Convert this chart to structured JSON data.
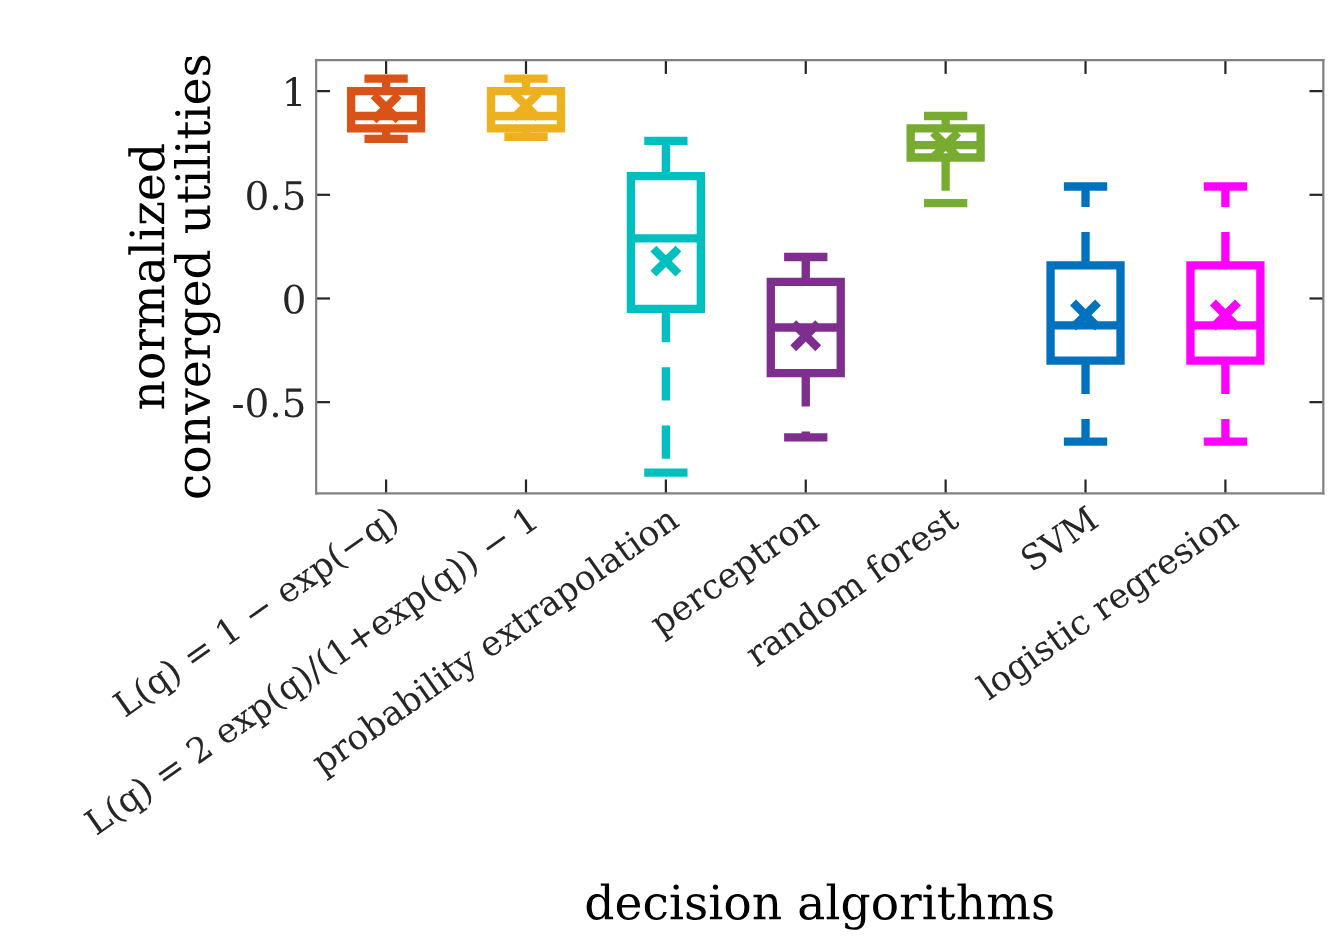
{
  "chart_data": {
    "type": "box",
    "xlabel": "decision algorithms",
    "ylabel": "normalized\nconverged utilities",
    "categories": [
      "L(q) = 1 − exp(−q)",
      "L(q) = 2 exp(q)/(1+exp(q)) − 1",
      "probability extrapolation",
      "perceptron",
      "random forest",
      "SVM",
      "logistic regresion"
    ],
    "colors": [
      "#d95319",
      "#edb120",
      "#00bfbf",
      "#7e2f8e",
      "#77ac30",
      "#0072bd",
      "#ff00ff"
    ],
    "boxes": [
      {
        "low": 0.77,
        "q1": 0.82,
        "median": 0.88,
        "q3": 1.0,
        "high": 1.06,
        "mean": 0.92
      },
      {
        "low": 0.78,
        "q1": 0.82,
        "median": 0.88,
        "q3": 1.0,
        "high": 1.06,
        "mean": 0.93
      },
      {
        "low": -0.84,
        "q1": -0.05,
        "median": 0.29,
        "q3": 0.59,
        "high": 0.76,
        "mean": 0.18
      },
      {
        "low": -0.67,
        "q1": -0.36,
        "median": -0.14,
        "q3": 0.08,
        "high": 0.2,
        "mean": -0.18
      },
      {
        "low": 0.46,
        "q1": 0.68,
        "median": 0.74,
        "q3": 0.82,
        "high": 0.88,
        "mean": 0.74
      },
      {
        "low": -0.69,
        "q1": -0.3,
        "median": -0.13,
        "q3": 0.16,
        "high": 0.54,
        "mean": -0.08
      },
      {
        "low": -0.69,
        "q1": -0.3,
        "median": -0.13,
        "q3": 0.16,
        "high": 0.54,
        "mean": -0.08
      }
    ],
    "ylim": [
      -0.94,
      1.15
    ],
    "yticks": [
      {
        "value": -0.5,
        "label": "-0.5"
      },
      0,
      0.5,
      1
    ],
    "marker": "cross",
    "line_style": "dashed",
    "grid": false
  }
}
